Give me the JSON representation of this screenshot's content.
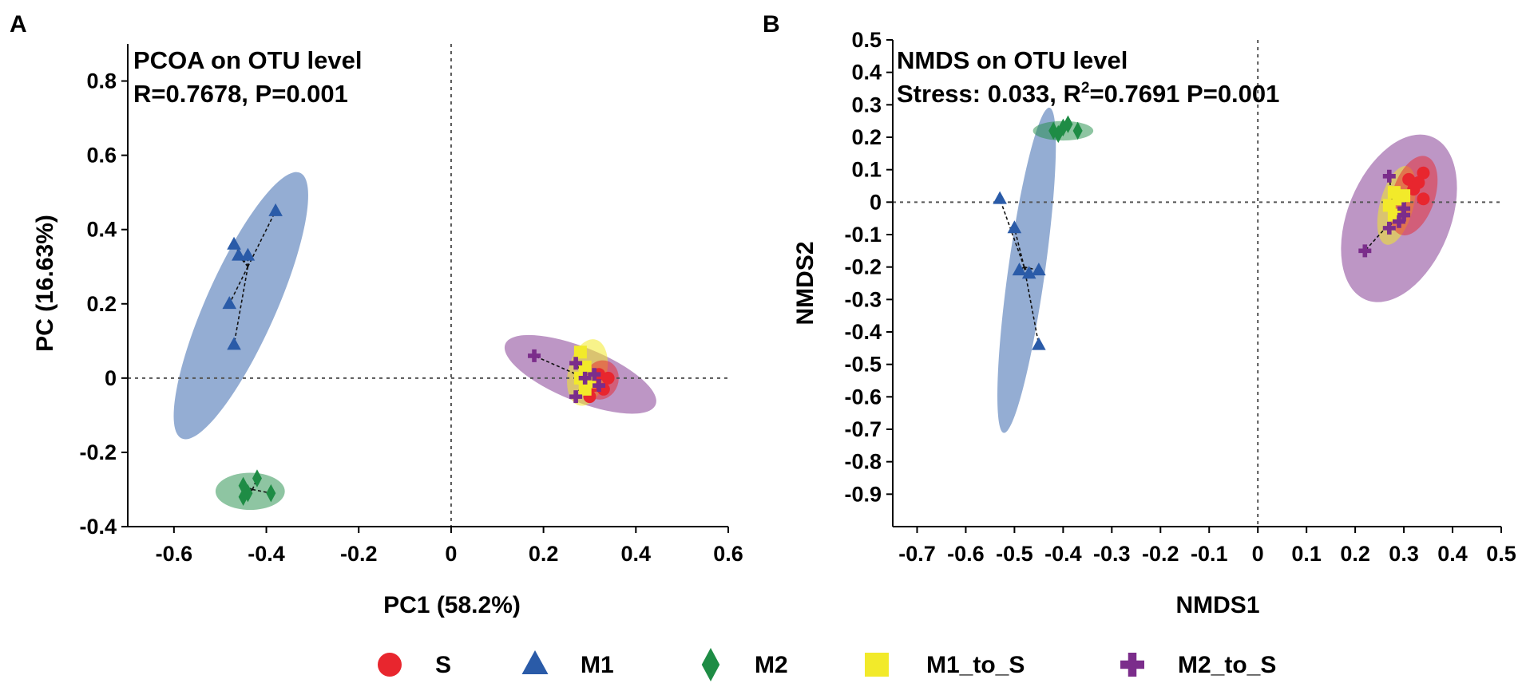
{
  "colors": {
    "S": "#e8262e",
    "M1": "#2a5ba8",
    "M2": "#1e8c45",
    "M1_to_S": "#f2ea2a",
    "M2_to_S": "#7b2d8b"
  },
  "legend": [
    {
      "group": "S",
      "label": "S",
      "icon": "circle"
    },
    {
      "group": "M1",
      "label": "M1",
      "icon": "triangle"
    },
    {
      "group": "M2",
      "label": "M2",
      "icon": "diamond"
    },
    {
      "group": "M1_to_S",
      "label": "M1_to_S",
      "icon": "square"
    },
    {
      "group": "M2_to_S",
      "label": "M2_to_S",
      "icon": "plus"
    }
  ],
  "chart_data": [
    {
      "panel": "A",
      "type": "scatter",
      "title": "PCOA on OTU level",
      "subtitle_parts": [
        "R=0.7678, P=0.001"
      ],
      "xlabel": "PC1 (58.2%)",
      "ylabel": "PC (16.63%)",
      "xlim": [
        -0.7,
        0.6
      ],
      "ylim": [
        -0.4,
        0.9
      ],
      "xticks": [
        -0.6,
        -0.4,
        -0.2,
        0,
        0.2,
        0.4,
        0.6
      ],
      "xtick_labels": [
        "-0.6",
        "-0.4",
        "-0.2",
        "0",
        "0.2",
        "0.4",
        "0.6"
      ],
      "yticks": [
        -0.4,
        -0.2,
        0,
        0.2,
        0.4,
        0.6,
        0.8
      ],
      "ytick_labels": [
        "-0.4",
        "-0.2",
        "0",
        "0.2",
        "0.4",
        "0.6",
        "0.8"
      ],
      "reference_lines": {
        "x": 0,
        "y": 0
      },
      "series": [
        {
          "name": "S",
          "points": [
            [
              0.32,
              0.01
            ],
            [
              0.34,
              0.0
            ],
            [
              0.31,
              -0.02
            ],
            [
              0.33,
              -0.03
            ],
            [
              0.3,
              -0.05
            ]
          ]
        },
        {
          "name": "M1",
          "points": [
            [
              -0.38,
              0.45
            ],
            [
              -0.47,
              0.36
            ],
            [
              -0.46,
              0.33
            ],
            [
              -0.44,
              0.33
            ],
            [
              -0.48,
              0.2
            ],
            [
              -0.47,
              0.09
            ]
          ]
        },
        {
          "name": "M2",
          "points": [
            [
              -0.45,
              -0.29
            ],
            [
              -0.42,
              -0.27
            ],
            [
              -0.44,
              -0.31
            ],
            [
              -0.45,
              -0.32
            ],
            [
              -0.39,
              -0.31
            ]
          ]
        },
        {
          "name": "M1_to_S",
          "points": [
            [
              0.28,
              0.07
            ],
            [
              0.29,
              0.03
            ],
            [
              0.28,
              0.0
            ],
            [
              0.29,
              -0.03
            ],
            [
              0.3,
              -0.01
            ]
          ]
        },
        {
          "name": "M2_to_S",
          "points": [
            [
              0.18,
              0.06
            ],
            [
              0.27,
              0.04
            ],
            [
              0.29,
              0.0
            ],
            [
              0.32,
              -0.02
            ],
            [
              0.27,
              -0.05
            ],
            [
              0.31,
              0.01
            ]
          ]
        }
      ],
      "centroid_links": [
        {
          "name": "M1",
          "from": [
            -0.44,
            0.3
          ],
          "to": [
            [
              -0.38,
              0.45
            ],
            [
              -0.47,
              0.36
            ],
            [
              -0.46,
              0.33
            ],
            [
              -0.44,
              0.33
            ],
            [
              -0.48,
              0.2
            ],
            [
              -0.47,
              0.09
            ]
          ]
        },
        {
          "name": "M2",
          "from": [
            -0.43,
            -0.3
          ],
          "to": [
            [
              -0.45,
              -0.29
            ],
            [
              -0.42,
              -0.27
            ],
            [
              -0.44,
              -0.31
            ],
            [
              -0.45,
              -0.32
            ],
            [
              -0.39,
              -0.31
            ]
          ]
        },
        {
          "name": "M2_to_S",
          "from": [
            0.29,
            0.0
          ],
          "to": [
            [
              0.18,
              0.06
            ],
            [
              0.27,
              0.04
            ],
            [
              0.29,
              0.0
            ],
            [
              0.32,
              -0.02
            ],
            [
              0.27,
              -0.05
            ],
            [
              0.31,
              0.01
            ]
          ]
        }
      ],
      "ellipses": [
        {
          "group": "M1",
          "cx": -0.455,
          "cy": 0.195,
          "rx": 0.375,
          "ry": 0.078,
          "angle": 66
        },
        {
          "group": "M2",
          "cx": -0.435,
          "cy": -0.305,
          "rx": 0.075,
          "ry": 0.05,
          "angle": 0
        },
        {
          "group": "M2_to_S",
          "cx": 0.28,
          "cy": 0.01,
          "rx": 0.18,
          "ry": 0.07,
          "angle": -22
        },
        {
          "group": "M1_to_S",
          "cx": 0.295,
          "cy": 0.015,
          "rx": 0.09,
          "ry": 0.042,
          "angle": 76
        },
        {
          "group": "S",
          "cx": 0.325,
          "cy": -0.005,
          "rx": 0.052,
          "ry": 0.038,
          "angle": 70
        }
      ]
    },
    {
      "panel": "B",
      "type": "scatter",
      "title": "NMDS on OTU level",
      "subtitle_parts": [
        "Stress: 0.033, R",
        "2",
        "=0.7691 P=0.001"
      ],
      "xlabel": "NMDS1",
      "ylabel": "NMDS2",
      "xlim": [
        -0.75,
        0.5
      ],
      "ylim": [
        -1.0,
        0.5
      ],
      "xticks": [
        -0.7,
        -0.6,
        -0.5,
        -0.4,
        -0.3,
        -0.2,
        -0.1,
        0,
        0.1,
        0.2,
        0.3,
        0.4,
        0.5
      ],
      "xtick_labels": [
        "-0.7",
        "-0.6",
        "-0.5",
        "-0.4",
        "-0.3",
        "-0.2",
        "-0.1",
        "0",
        "0.1",
        "0.2",
        "0.3",
        "0.4",
        "0.5"
      ],
      "yticks": [
        0.5,
        0.4,
        0.3,
        0.2,
        0.1,
        0,
        -0.1,
        -0.2,
        -0.3,
        -0.4,
        -0.5,
        -0.6,
        -0.7,
        -0.8,
        -0.9
      ],
      "ytick_labels": [
        "0.5",
        "0.4",
        "0.3",
        "0.2",
        "0.1",
        "0",
        "-0.1",
        "-0.2",
        "-0.3",
        "-0.4",
        "-0.5",
        "-0.6",
        "-0.7",
        "-0.8",
        "-0.9"
      ],
      "reference_lines": {
        "x": 0,
        "y": 0
      },
      "series": [
        {
          "name": "S",
          "points": [
            [
              0.31,
              0.07
            ],
            [
              0.34,
              0.09
            ],
            [
              0.33,
              0.06
            ],
            [
              0.32,
              0.04
            ],
            [
              0.34,
              0.01
            ]
          ]
        },
        {
          "name": "M1",
          "points": [
            [
              -0.53,
              0.01
            ],
            [
              -0.5,
              -0.08
            ],
            [
              -0.49,
              -0.21
            ],
            [
              -0.47,
              -0.22
            ],
            [
              -0.45,
              -0.21
            ],
            [
              -0.45,
              -0.44
            ]
          ]
        },
        {
          "name": "M2",
          "points": [
            [
              -0.42,
              0.22
            ],
            [
              -0.4,
              0.23
            ],
            [
              -0.41,
              0.21
            ],
            [
              -0.39,
              0.24
            ],
            [
              -0.37,
              0.22
            ]
          ]
        },
        {
          "name": "M1_to_S",
          "points": [
            [
              0.28,
              0.03
            ],
            [
              0.29,
              0.01
            ],
            [
              0.27,
              -0.01
            ],
            [
              0.28,
              -0.04
            ],
            [
              0.3,
              0.02
            ]
          ]
        },
        {
          "name": "M2_to_S",
          "points": [
            [
              0.22,
              -0.15
            ],
            [
              0.27,
              0.08
            ],
            [
              0.29,
              -0.06
            ],
            [
              0.3,
              -0.04
            ],
            [
              0.27,
              -0.08
            ],
            [
              0.3,
              -0.02
            ]
          ]
        }
      ],
      "centroid_links": [
        {
          "name": "M1",
          "from": [
            -0.48,
            -0.2
          ],
          "to": [
            [
              -0.53,
              0.01
            ],
            [
              -0.5,
              -0.08
            ],
            [
              -0.49,
              -0.21
            ],
            [
              -0.47,
              -0.22
            ],
            [
              -0.45,
              -0.21
            ],
            [
              -0.45,
              -0.44
            ]
          ]
        },
        {
          "name": "M2_to_S",
          "from": [
            0.28,
            -0.05
          ],
          "to": [
            [
              0.22,
              -0.15
            ],
            [
              0.27,
              0.08
            ],
            [
              0.29,
              -0.06
            ],
            [
              0.3,
              -0.04
            ],
            [
              0.27,
              -0.08
            ],
            [
              0.3,
              -0.02
            ]
          ]
        }
      ],
      "ellipses": [
        {
          "group": "M1",
          "cx": -0.475,
          "cy": -0.21,
          "rx": 0.5,
          "ry": 0.038,
          "angle": 82
        },
        {
          "group": "M2",
          "cx": -0.4,
          "cy": 0.22,
          "rx": 0.062,
          "ry": 0.03,
          "angle": 0
        },
        {
          "group": "M2_to_S",
          "cx": 0.29,
          "cy": -0.05,
          "rx": 0.25,
          "ry": 0.11,
          "angle": 68
        },
        {
          "group": "M1_to_S",
          "cx": 0.285,
          "cy": -0.01,
          "rx": 0.12,
          "ry": 0.035,
          "angle": 75
        },
        {
          "group": "S",
          "cx": 0.32,
          "cy": 0.02,
          "rx": 0.12,
          "ry": 0.045,
          "angle": 72
        }
      ]
    }
  ]
}
